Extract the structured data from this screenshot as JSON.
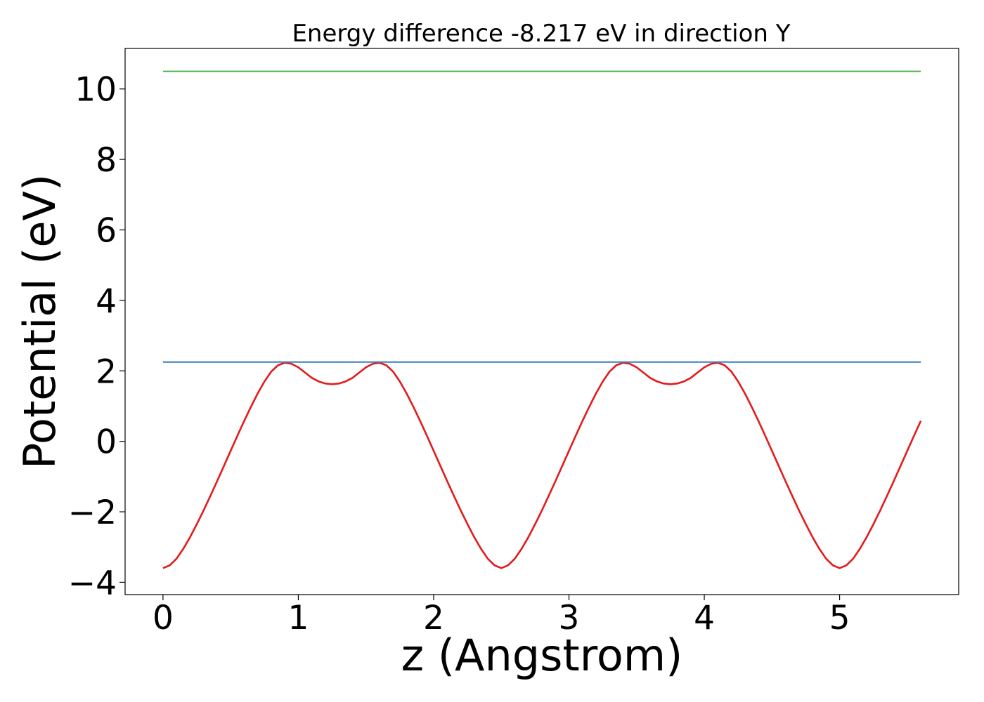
{
  "chart_data": {
    "type": "line",
    "title": "Energy difference -8.217 eV in direction Y",
    "xlabel": "z (Angstrom)",
    "ylabel": "Potential (eV)",
    "xlim": [
      -0.28,
      5.88
    ],
    "ylim": [
      -4.35,
      11.15
    ],
    "xticks": [
      0,
      1,
      2,
      3,
      4,
      5
    ],
    "yticks": [
      -4,
      -2,
      0,
      2,
      4,
      6,
      8,
      10
    ],
    "xtick_labels": [
      "0",
      "1",
      "2",
      "3",
      "4",
      "5"
    ],
    "ytick_labels": [
      "−4",
      "−2",
      "0",
      "2",
      "4",
      "6",
      "8",
      "10"
    ],
    "grid": false,
    "series": [
      {
        "color": "#e41a1c",
        "x": [
          0,
          0.05,
          0.1,
          0.15,
          0.2,
          0.25,
          0.3,
          0.35,
          0.4,
          0.45,
          0.5,
          0.55,
          0.6,
          0.65,
          0.7,
          0.75,
          0.8,
          0.85,
          0.9,
          0.95,
          1.0,
          1.05,
          1.1,
          1.15,
          1.2,
          1.25,
          1.3,
          1.35,
          1.4,
          1.45,
          1.5,
          1.55,
          1.6,
          1.65,
          1.7,
          1.75,
          1.8,
          1.85,
          1.9,
          1.95,
          2.0,
          2.05,
          2.1,
          2.15,
          2.2,
          2.25,
          2.3,
          2.35,
          2.4,
          2.45,
          2.5,
          2.55,
          2.6,
          2.65,
          2.7,
          2.75,
          2.8,
          2.85,
          2.9,
          2.95,
          3.0,
          3.05,
          3.1,
          3.15,
          3.2,
          3.25,
          3.3,
          3.35,
          3.4,
          3.45,
          3.5,
          3.55,
          3.6,
          3.65,
          3.7,
          3.75,
          3.8,
          3.85,
          3.9,
          3.95,
          4.0,
          4.05,
          4.1,
          4.15,
          4.2,
          4.25,
          4.3,
          4.35,
          4.4,
          4.45,
          4.5,
          4.55,
          4.6,
          4.65,
          4.7,
          4.75,
          4.8,
          4.85,
          4.9,
          4.95,
          5.0,
          5.05,
          5.1,
          5.15,
          5.2,
          5.25,
          5.3,
          5.35,
          5.4,
          5.45,
          5.5,
          5.55,
          5.6
        ],
        "values": [
          -3.6,
          -3.52,
          -3.33,
          -3.05,
          -2.72,
          -2.35,
          -1.96,
          -1.55,
          -1.13,
          -0.7,
          -0.27,
          0.16,
          0.58,
          0.98,
          1.36,
          1.7,
          1.98,
          2.16,
          2.23,
          2.2,
          2.1,
          1.95,
          1.8,
          1.7,
          1.64,
          1.62,
          1.64,
          1.7,
          1.8,
          1.95,
          2.1,
          2.2,
          2.23,
          2.16,
          1.98,
          1.7,
          1.36,
          0.98,
          0.58,
          0.16,
          -0.27,
          -0.7,
          -1.13,
          -1.55,
          -1.96,
          -2.35,
          -2.72,
          -3.05,
          -3.33,
          -3.52,
          -3.6,
          -3.52,
          -3.33,
          -3.05,
          -2.72,
          -2.35,
          -1.96,
          -1.55,
          -1.13,
          -0.7,
          -0.27,
          0.16,
          0.58,
          0.98,
          1.36,
          1.7,
          1.98,
          2.16,
          2.23,
          2.2,
          2.1,
          1.95,
          1.8,
          1.7,
          1.64,
          1.62,
          1.64,
          1.7,
          1.8,
          1.95,
          2.1,
          2.2,
          2.23,
          2.16,
          1.98,
          1.7,
          1.36,
          0.98,
          0.58,
          0.16,
          -0.27,
          -0.7,
          -1.13,
          -1.55,
          -1.96,
          -2.35,
          -2.72,
          -3.05,
          -3.33,
          -3.52,
          -3.6,
          -3.52,
          -3.33,
          -3.05,
          -2.72,
          -2.35,
          -1.96,
          -1.55,
          -1.13,
          -0.7,
          -0.27,
          0.16,
          0.58
        ]
      },
      {
        "color": "#377eb8",
        "x": [
          0,
          5.6
        ],
        "values": [
          2.25,
          2.25
        ]
      },
      {
        "color": "#4daf4a",
        "x": [
          0,
          5.6
        ],
        "values": [
          10.5,
          10.5
        ]
      }
    ]
  }
}
